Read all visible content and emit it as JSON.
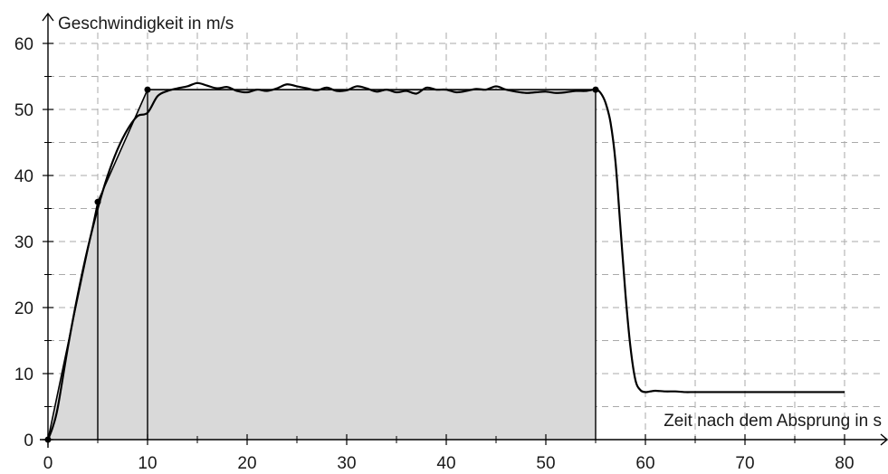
{
  "chart_data": {
    "type": "line",
    "xlabel": "Zeit nach dem Absprung in s",
    "ylabel": "Geschwindigkeit in m/s",
    "xlim": [
      0,
      80
    ],
    "ylim": [
      0,
      60
    ],
    "x_ticks": [
      0,
      10,
      20,
      30,
      40,
      50,
      60,
      70,
      80
    ],
    "y_ticks": [
      0,
      10,
      20,
      30,
      40,
      50,
      60
    ],
    "grid": true,
    "grid_style": "dashed",
    "colors": {
      "line": "#000000",
      "area": "#d9d9d9",
      "grid": "#aaaaaa"
    },
    "series": [
      {
        "style": "measured",
        "x": [
          0,
          0.5,
          1,
          2,
          3,
          4,
          5,
          6,
          7,
          8,
          9,
          10,
          11,
          12,
          13,
          14,
          15,
          16,
          17,
          18,
          19,
          20,
          21,
          22,
          23,
          24,
          25,
          26,
          27,
          28,
          29,
          30,
          31,
          32,
          33,
          34,
          35,
          36,
          37,
          38,
          39,
          40,
          41,
          42,
          43,
          44,
          45,
          46,
          47,
          48,
          49,
          50,
          51,
          52,
          53,
          54,
          55,
          55.5,
          56,
          56.5,
          57,
          57.5,
          58,
          58.5,
          59,
          59.5,
          60,
          60.5,
          61,
          62,
          63,
          64,
          65,
          70,
          75,
          80
        ],
        "y": [
          0,
          2,
          5,
          14,
          22,
          29,
          35,
          40,
          44,
          47,
          49,
          49.5,
          52,
          52.8,
          53.2,
          53.5,
          54,
          53.6,
          53.2,
          53.4,
          52.8,
          52.6,
          53,
          52.8,
          53.2,
          53.8,
          53.5,
          53.2,
          52.9,
          53.3,
          52.8,
          52.9,
          53.5,
          53.2,
          52.7,
          53,
          52.6,
          52.8,
          52.4,
          53.3,
          53,
          53,
          52.6,
          52.8,
          53.1,
          53,
          53.5,
          53,
          52.7,
          52.5,
          52.6,
          52.7,
          52.5,
          52.6,
          52.8,
          52.8,
          53,
          52.5,
          51,
          48,
          42,
          32,
          22,
          14,
          9,
          7.5,
          7.2,
          7.3,
          7.4,
          7.3,
          7.3,
          7.2,
          7.2,
          7.2,
          7.2,
          7.2
        ]
      },
      {
        "style": "model",
        "x": [
          0,
          5,
          10,
          55
        ],
        "y": [
          0,
          36,
          53,
          53
        ]
      }
    ],
    "shaded_region": {
      "x": [
        0,
        5,
        10,
        55
      ],
      "y": [
        0,
        36,
        53,
        53
      ]
    },
    "marked_points": [
      {
        "x": 0,
        "y": 0
      },
      {
        "x": 5,
        "y": 36
      },
      {
        "x": 10,
        "y": 53
      },
      {
        "x": 55,
        "y": 53
      }
    ]
  }
}
